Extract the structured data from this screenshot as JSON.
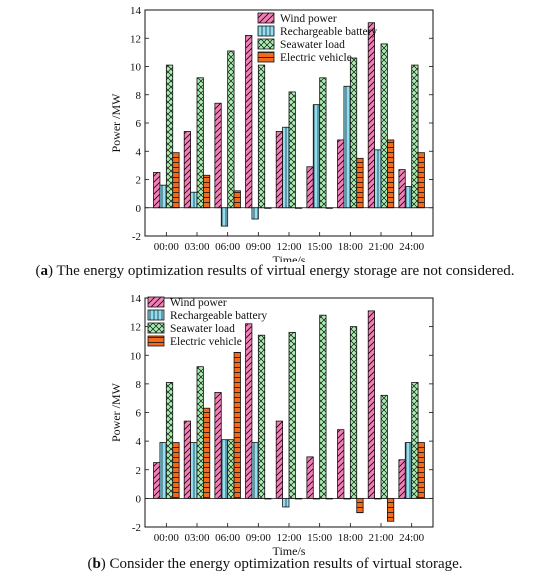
{
  "legend_items": [
    "Wind power",
    "Rechargeable battery",
    "Seawater load",
    "Electric vehicle"
  ],
  "colors": {
    "wind": "#f47fb7",
    "battery": "#8fe0f3",
    "seawater": "#a8eeb0",
    "ev": "#f26a1b"
  },
  "chart_data": [
    {
      "type": "bar",
      "panel": "a",
      "caption_letter": "a",
      "caption_text": "The energy optimization results of virtual energy storage are not considered.",
      "xlabel": "Time/s",
      "ylabel": "Power /MW",
      "ylim": [
        -2,
        14
      ],
      "yticks": [
        -2,
        0,
        2,
        4,
        6,
        8,
        10,
        12,
        14
      ],
      "categories": [
        "00:00",
        "03:00",
        "06:00",
        "09:00",
        "12:00",
        "15:00",
        "18:00",
        "21:00",
        "24:00"
      ],
      "series": [
        {
          "name": "Wind power",
          "values": [
            2.5,
            5.4,
            7.4,
            12.2,
            5.4,
            2.9,
            4.8,
            13.1,
            2.7
          ]
        },
        {
          "name": "Rechargeable battery",
          "values": [
            1.6,
            1.1,
            -1.3,
            -0.8,
            5.7,
            7.3,
            8.6,
            4.1,
            1.5
          ]
        },
        {
          "name": "Seawater load",
          "values": [
            10.1,
            9.2,
            11.1,
            10.1,
            8.2,
            9.2,
            10.6,
            11.6,
            10.1
          ]
        },
        {
          "name": "Electric vehicle",
          "values": [
            3.9,
            2.3,
            1.2,
            0.0,
            0.0,
            0.0,
            3.5,
            4.8,
            3.9
          ]
        }
      ]
    },
    {
      "type": "bar",
      "panel": "b",
      "caption_letter": "b",
      "caption_text": "Consider the energy optimization results of virtual storage.",
      "xlabel": "Time/s",
      "ylabel": "Power /MW",
      "ylim": [
        -2,
        14
      ],
      "yticks": [
        -2,
        0,
        2,
        4,
        6,
        8,
        10,
        12,
        14
      ],
      "categories": [
        "00:00",
        "03:00",
        "06:00",
        "09:00",
        "12:00",
        "15:00",
        "18:00",
        "21:00",
        "24:00"
      ],
      "series": [
        {
          "name": "Wind power",
          "values": [
            2.5,
            5.4,
            7.4,
            12.2,
            5.4,
            2.9,
            4.8,
            13.1,
            2.7
          ]
        },
        {
          "name": "Rechargeable battery",
          "values": [
            3.9,
            3.9,
            4.1,
            3.9,
            -0.6,
            0.0,
            0.0,
            0.0,
            3.9
          ]
        },
        {
          "name": "Seawater load",
          "values": [
            8.1,
            9.2,
            4.1,
            11.4,
            11.6,
            12.8,
            12.0,
            7.2,
            8.1
          ]
        },
        {
          "name": "Electric vehicle",
          "values": [
            3.9,
            6.3,
            10.2,
            0.0,
            0.0,
            0.0,
            -1.0,
            -1.6,
            3.9
          ]
        }
      ]
    }
  ]
}
